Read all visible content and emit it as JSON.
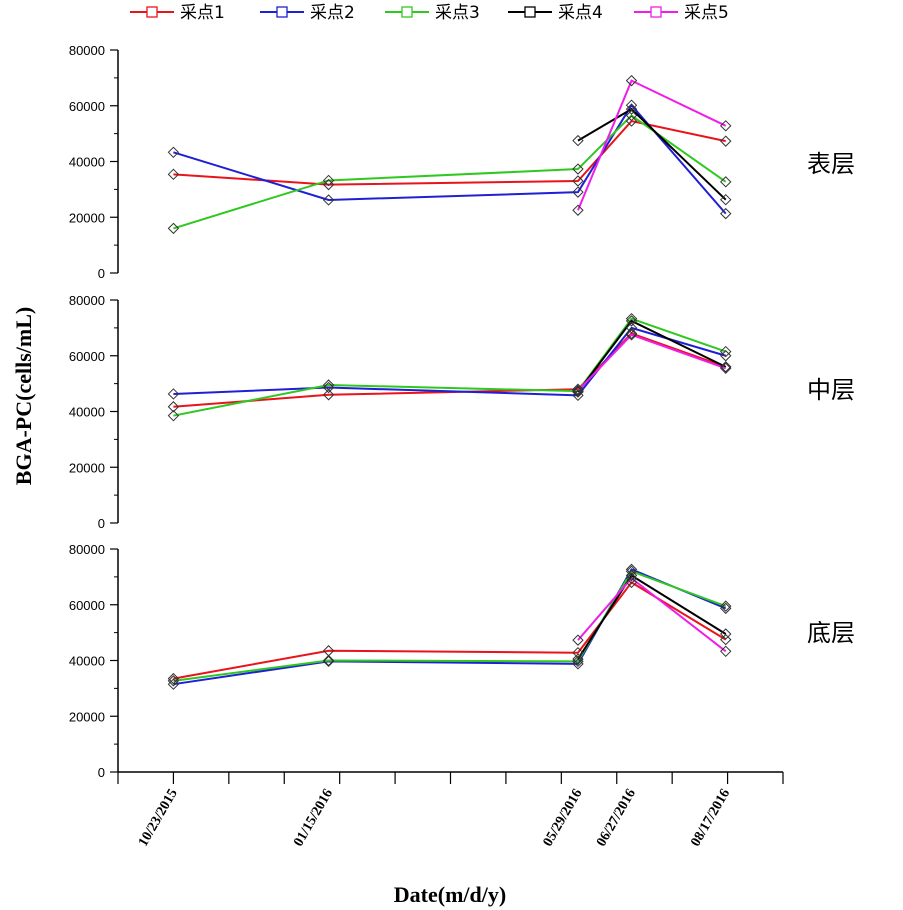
{
  "chart_data": {
    "type": "line",
    "ylabel": "BGA-PC(cells/mL)",
    "xlabel": "Date(m/d/y)",
    "x_dates": [
      "10/23/2015",
      "01/15/2016",
      "05/29/2016",
      "06/27/2016",
      "08/17/2016"
    ],
    "x_day_offsets": [
      0,
      84,
      219,
      248,
      299
    ],
    "x_range_days": [
      -30,
      330
    ],
    "ylim": [
      0,
      80000
    ],
    "y_ticks": [
      "0",
      "20000",
      "40000",
      "60000",
      "80000"
    ],
    "legend": [
      "采点1",
      "采点2",
      "采点3",
      "采点4",
      "采点5"
    ],
    "series_colors": [
      "#e8131b",
      "#1f1fd6",
      "#2fc81f",
      "#000000",
      "#ee1ee8"
    ],
    "panels": [
      {
        "label": "表层",
        "series": [
          {
            "name": "采点1",
            "values": [
              35400,
              31700,
              33000,
              54500,
              47300
            ]
          },
          {
            "name": "采点2",
            "values": [
              43300,
              26200,
              29000,
              60200,
              21300
            ]
          },
          {
            "name": "采点3",
            "values": [
              16000,
              33200,
              37300,
              56500,
              32700
            ]
          },
          {
            "name": "采点4",
            "values": [
              null,
              null,
              47500,
              58800,
              26300
            ]
          },
          {
            "name": "采点5",
            "values": [
              null,
              null,
              22500,
              69000,
              52800
            ]
          }
        ]
      },
      {
        "label": "中层",
        "series": [
          {
            "name": "采点1",
            "values": [
              41700,
              46000,
              48000,
              68000,
              56000
            ]
          },
          {
            "name": "采点2",
            "values": [
              46300,
              48600,
              45800,
              70000,
              60000
            ]
          },
          {
            "name": "采点3",
            "values": [
              38500,
              49500,
              47300,
              73300,
              61500
            ]
          },
          {
            "name": "采点4",
            "values": [
              null,
              null,
              47000,
              72500,
              56000
            ]
          },
          {
            "name": "采点5",
            "values": [
              null,
              null,
              47500,
              67500,
              55500
            ]
          }
        ]
      },
      {
        "label": "底层",
        "series": [
          {
            "name": "采点1",
            "values": [
              33500,
              43500,
              42800,
              68000,
              47500
            ]
          },
          {
            "name": "采点2",
            "values": [
              31500,
              39700,
              38800,
              72700,
              58700
            ]
          },
          {
            "name": "采点3",
            "values": [
              32700,
              40000,
              39700,
              72000,
              59500
            ]
          },
          {
            "name": "采点4",
            "values": [
              null,
              null,
              40500,
              70500,
              49500
            ]
          },
          {
            "name": "采点5",
            "values": [
              null,
              null,
              47300,
              69500,
              43300
            ]
          }
        ]
      }
    ]
  }
}
